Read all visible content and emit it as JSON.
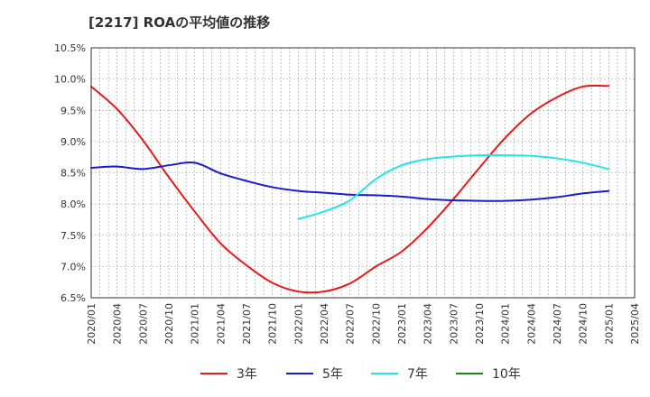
{
  "chart_data": {
    "type": "line",
    "title": "[2217]  ROAの平均値の推移",
    "xlabel": "",
    "ylabel": "",
    "ylim": [
      6.5,
      10.5
    ],
    "grid": true,
    "legend_position": "bottom",
    "y_ticks": [
      "6.5%",
      "7.0%",
      "7.5%",
      "8.0%",
      "8.5%",
      "9.0%",
      "9.5%",
      "10.0%",
      "10.5%"
    ],
    "x_ticks": [
      "2020/01",
      "2020/04",
      "2020/07",
      "2020/10",
      "2021/01",
      "2021/04",
      "2021/07",
      "2021/10",
      "2022/01",
      "2022/04",
      "2022/07",
      "2022/10",
      "2023/01",
      "2023/04",
      "2023/07",
      "2023/10",
      "2024/01",
      "2024/04",
      "2024/07",
      "2024/10",
      "2025/01",
      "2025/04"
    ],
    "series": [
      {
        "name": "3年",
        "color": "#e8191a",
        "points": [
          [
            "2020/01",
            9.88
          ],
          [
            "2020/04",
            9.52
          ],
          [
            "2020/07",
            9.02
          ],
          [
            "2020/10",
            8.43
          ],
          [
            "2021/01",
            7.88
          ],
          [
            "2021/04",
            7.37
          ],
          [
            "2021/07",
            7.02
          ],
          [
            "2021/10",
            6.74
          ],
          [
            "2022/01",
            6.6
          ],
          [
            "2022/04",
            6.6
          ],
          [
            "2022/07",
            6.73
          ],
          [
            "2022/10",
            7.0
          ],
          [
            "2023/01",
            7.24
          ],
          [
            "2023/04",
            7.62
          ],
          [
            "2023/07",
            8.08
          ],
          [
            "2023/10",
            8.58
          ],
          [
            "2024/01",
            9.06
          ],
          [
            "2024/04",
            9.45
          ],
          [
            "2024/07",
            9.71
          ],
          [
            "2024/10",
            9.88
          ],
          [
            "2025/01",
            9.89
          ]
        ]
      },
      {
        "name": "5年",
        "color": "#1a1ad2",
        "points": [
          [
            "2020/01",
            8.58
          ],
          [
            "2020/04",
            8.6
          ],
          [
            "2020/07",
            8.56
          ],
          [
            "2020/10",
            8.62
          ],
          [
            "2021/01",
            8.66
          ],
          [
            "2021/04",
            8.49
          ],
          [
            "2021/07",
            8.37
          ],
          [
            "2021/10",
            8.27
          ],
          [
            "2022/01",
            8.21
          ],
          [
            "2022/04",
            8.18
          ],
          [
            "2022/07",
            8.15
          ],
          [
            "2022/10",
            8.14
          ],
          [
            "2023/01",
            8.12
          ],
          [
            "2023/04",
            8.08
          ],
          [
            "2023/07",
            8.06
          ],
          [
            "2023/10",
            8.05
          ],
          [
            "2024/01",
            8.05
          ],
          [
            "2024/04",
            8.07
          ],
          [
            "2024/07",
            8.11
          ],
          [
            "2024/10",
            8.17
          ],
          [
            "2025/01",
            8.21
          ]
        ]
      },
      {
        "name": "7年",
        "color": "#22e6e6",
        "points": [
          [
            "2022/01",
            7.76
          ],
          [
            "2022/04",
            7.88
          ],
          [
            "2022/07",
            8.06
          ],
          [
            "2022/10",
            8.4
          ],
          [
            "2023/01",
            8.62
          ],
          [
            "2023/04",
            8.72
          ],
          [
            "2023/07",
            8.76
          ],
          [
            "2023/10",
            8.78
          ],
          [
            "2024/01",
            8.78
          ],
          [
            "2024/04",
            8.77
          ],
          [
            "2024/07",
            8.73
          ],
          [
            "2024/10",
            8.66
          ],
          [
            "2025/01",
            8.56
          ]
        ]
      },
      {
        "name": "10年",
        "color": "#1a8a1a",
        "points": []
      }
    ]
  }
}
